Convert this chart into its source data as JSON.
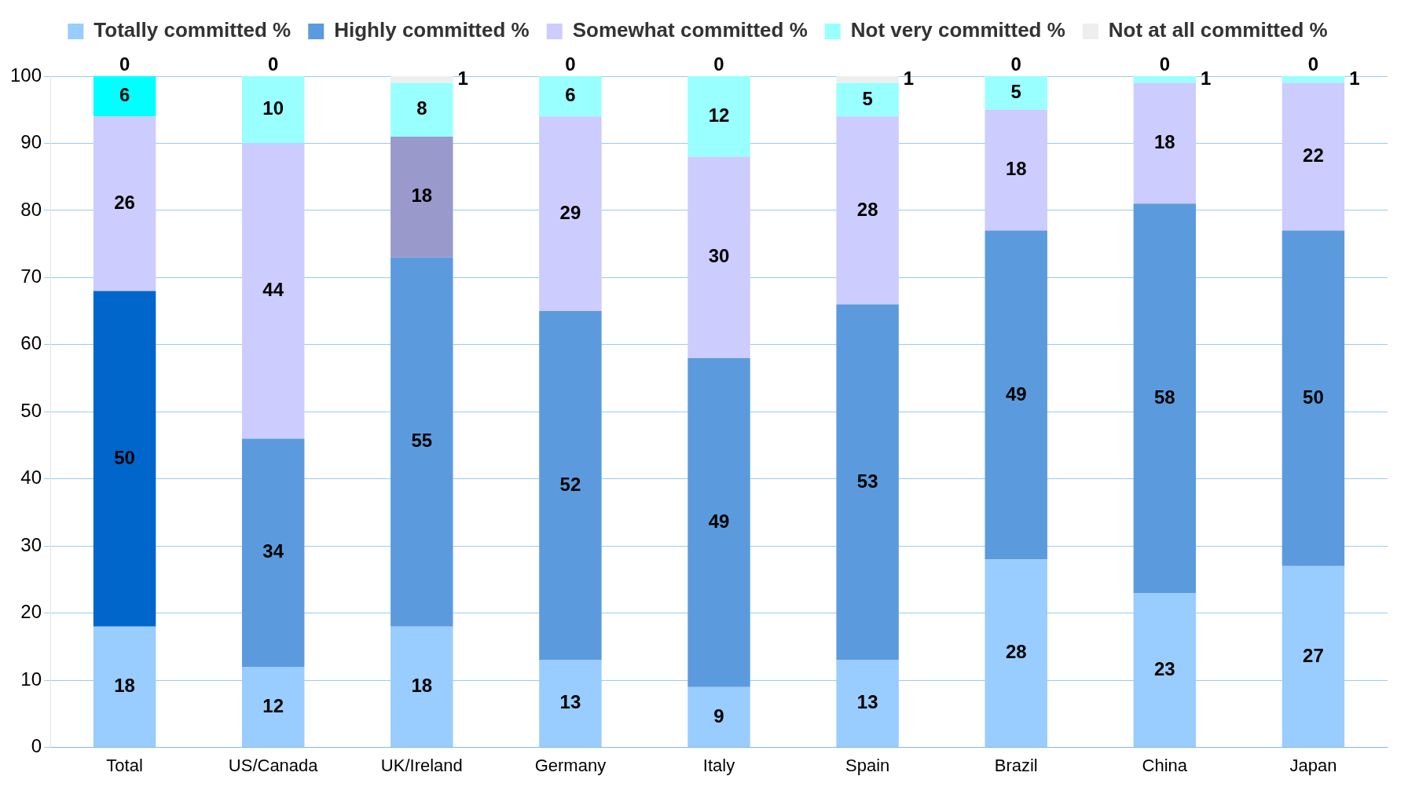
{
  "chart_data": {
    "type": "bar",
    "stacked": true,
    "categories": [
      "Total",
      "US/Canada",
      "UK/Ireland",
      "Germany",
      "Italy",
      "Spain",
      "Brazil",
      "China",
      "Japan"
    ],
    "series": [
      {
        "name": "Totally committed %",
        "color": "#99ccff",
        "values": [
          18,
          12,
          18,
          13,
          9,
          13,
          28,
          23,
          27
        ]
      },
      {
        "name": "Highly committed %",
        "color": "#5b9bdd",
        "colors": [
          "#0066cc",
          "#5b9bdd",
          "#5b9bdd",
          "#5b9bdd",
          "#5b9bdd",
          "#5b9bdd",
          "#5b9bdd",
          "#5b9bdd",
          "#5b9bdd"
        ],
        "values": [
          50,
          34,
          55,
          52,
          49,
          53,
          49,
          58,
          50
        ]
      },
      {
        "name": "Somewhat committed %",
        "color": "#ccccff",
        "colors": [
          "#ccccff",
          "#ccccff",
          "#9999cc",
          "#ccccff",
          "#ccccff",
          "#ccccff",
          "#ccccff",
          "#ccccff",
          "#ccccff"
        ],
        "values": [
          26,
          44,
          18,
          29,
          30,
          28,
          18,
          18,
          22
        ]
      },
      {
        "name": "Not very committed %",
        "color": "#99ffff",
        "colors": [
          "#00ffff",
          "#99ffff",
          "#99ffff",
          "#99ffff",
          "#99ffff",
          "#99ffff",
          "#99ffff",
          "#99ffff",
          "#99ffff"
        ],
        "values": [
          6,
          10,
          8,
          6,
          12,
          5,
          5,
          1,
          1
        ]
      },
      {
        "name": "Not at all committed %",
        "color": "#eeeeee",
        "values": [
          0,
          0,
          1,
          0,
          0,
          1,
          0,
          0,
          0
        ]
      }
    ],
    "ylim": [
      0,
      100
    ],
    "yticks": [
      0,
      10,
      20,
      30,
      40,
      50,
      60,
      70,
      80,
      90,
      100
    ],
    "grid": "y",
    "legend": "top",
    "data_labels": true
  }
}
